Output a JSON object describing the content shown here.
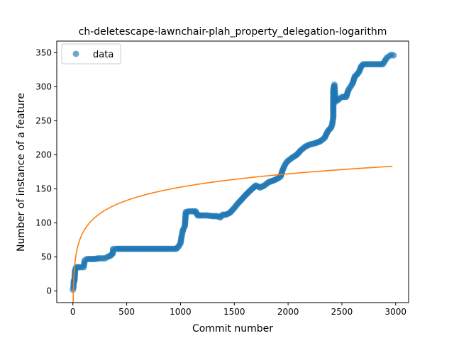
{
  "chart_data": {
    "type": "scatter",
    "title": "ch-deletescape-lawnchair-plah_property_delegation-logarithm",
    "xlabel": "Commit number",
    "ylabel": "Number of instance of a feature",
    "xlim": [
      -150,
      3120
    ],
    "ylim": [
      -17,
      367
    ],
    "x_ticks": [
      0,
      500,
      1000,
      1500,
      2000,
      2500,
      3000
    ],
    "y_ticks": [
      0,
      50,
      100,
      150,
      200,
      250,
      300,
      350
    ],
    "x_tick_labels": [
      "0",
      "500",
      "1000",
      "1500",
      "2000",
      "2500",
      "3000"
    ],
    "y_tick_labels": [
      "0",
      "50",
      "100",
      "150",
      "200",
      "250",
      "300",
      "350"
    ],
    "legend": {
      "placement": "upper-left",
      "entries": [
        "data"
      ]
    },
    "grid": false,
    "series": [
      {
        "name": "data",
        "kind": "scatter",
        "color": "#1f77b4",
        "alpha": 0.65,
        "points": [
          [
            0,
            2
          ],
          [
            5,
            5
          ],
          [
            8,
            15
          ],
          [
            15,
            15
          ],
          [
            20,
            30
          ],
          [
            30,
            35
          ],
          [
            45,
            35
          ],
          [
            60,
            35
          ],
          [
            80,
            35
          ],
          [
            100,
            35
          ],
          [
            110,
            45
          ],
          [
            130,
            47
          ],
          [
            160,
            47
          ],
          [
            200,
            47
          ],
          [
            240,
            48
          ],
          [
            260,
            48
          ],
          [
            280,
            48
          ],
          [
            300,
            48
          ],
          [
            320,
            50
          ],
          [
            350,
            52
          ],
          [
            370,
            55
          ],
          [
            375,
            62
          ],
          [
            400,
            62
          ],
          [
            500,
            62
          ],
          [
            600,
            62
          ],
          [
            700,
            62
          ],
          [
            800,
            62
          ],
          [
            900,
            62
          ],
          [
            960,
            62
          ],
          [
            980,
            65
          ],
          [
            1000,
            70
          ],
          [
            1010,
            80
          ],
          [
            1020,
            88
          ],
          [
            1030,
            92
          ],
          [
            1040,
            95
          ],
          [
            1050,
            116
          ],
          [
            1080,
            117
          ],
          [
            1100,
            117
          ],
          [
            1140,
            117
          ],
          [
            1160,
            111
          ],
          [
            1200,
            111
          ],
          [
            1250,
            111
          ],
          [
            1300,
            110
          ],
          [
            1340,
            110
          ],
          [
            1370,
            108
          ],
          [
            1390,
            112
          ],
          [
            1420,
            112
          ],
          [
            1460,
            115
          ],
          [
            1500,
            122
          ],
          [
            1530,
            128
          ],
          [
            1560,
            133
          ],
          [
            1600,
            140
          ],
          [
            1650,
            148
          ],
          [
            1700,
            155
          ],
          [
            1740,
            152
          ],
          [
            1780,
            155
          ],
          [
            1820,
            160
          ],
          [
            1860,
            162
          ],
          [
            1900,
            165
          ],
          [
            1930,
            168
          ],
          [
            1950,
            178
          ],
          [
            1970,
            185
          ],
          [
            1990,
            190
          ],
          [
            2030,
            195
          ],
          [
            2080,
            200
          ],
          [
            2120,
            207
          ],
          [
            2160,
            212
          ],
          [
            2200,
            215
          ],
          [
            2250,
            217
          ],
          [
            2300,
            220
          ],
          [
            2340,
            225
          ],
          [
            2370,
            235
          ],
          [
            2400,
            240
          ],
          [
            2410,
            245
          ],
          [
            2420,
            255
          ],
          [
            2420,
            280
          ],
          [
            2420,
            295
          ],
          [
            2425,
            300
          ],
          [
            2430,
            303
          ],
          [
            2440,
            278
          ],
          [
            2460,
            280
          ],
          [
            2480,
            283
          ],
          [
            2500,
            285
          ],
          [
            2540,
            285
          ],
          [
            2560,
            295
          ],
          [
            2580,
            300
          ],
          [
            2600,
            305
          ],
          [
            2620,
            315
          ],
          [
            2640,
            318
          ],
          [
            2660,
            322
          ],
          [
            2680,
            330
          ],
          [
            2700,
            333
          ],
          [
            2750,
            333
          ],
          [
            2800,
            333
          ],
          [
            2850,
            333
          ],
          [
            2880,
            333
          ],
          [
            2900,
            338
          ],
          [
            2920,
            343
          ],
          [
            2940,
            345
          ],
          [
            2960,
            347
          ],
          [
            2980,
            346
          ]
        ]
      },
      {
        "name": "fit",
        "kind": "line",
        "color": "#ff7f0e",
        "model": "logarithm",
        "a": 28.12,
        "b": -41.7,
        "x_range": [
          1,
          2970
        ]
      }
    ]
  }
}
